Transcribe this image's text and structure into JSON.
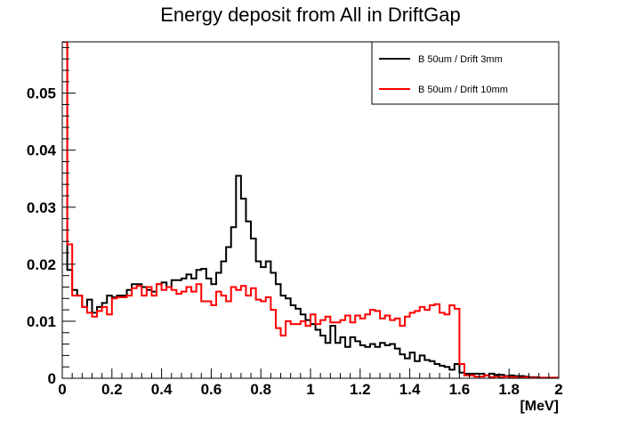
{
  "chart_data": {
    "type": "line",
    "title": "Energy deposit from All in DriftGap",
    "xlabel": "[MeV]",
    "ylabel": "",
    "xlim": [
      0,
      2
    ],
    "ylim": [
      0,
      0.059
    ],
    "x_ticks": [
      "0",
      "0.2",
      "0.4",
      "0.6",
      "0.8",
      "1",
      "1.2",
      "1.4",
      "1.6",
      "1.8",
      "2"
    ],
    "y_ticks": [
      "0",
      "0.01",
      "0.02",
      "0.03",
      "0.04",
      "0.05"
    ],
    "bin_width": 0.02,
    "grid": false,
    "legend_position": "top-right",
    "series": [
      {
        "name": "B 50um / Drift 3mm",
        "color": "#000000",
        "values": [
          0.059,
          0.019,
          0.0155,
          0.0145,
          0.0125,
          0.0138,
          0.0115,
          0.0125,
          0.0132,
          0.0145,
          0.0142,
          0.0145,
          0.0145,
          0.0155,
          0.0165,
          0.0165,
          0.016,
          0.0155,
          0.0152,
          0.0165,
          0.0168,
          0.016,
          0.0172,
          0.0172,
          0.0175,
          0.0182,
          0.0175,
          0.019,
          0.0192,
          0.0175,
          0.0165,
          0.0185,
          0.0205,
          0.023,
          0.0265,
          0.0355,
          0.0315,
          0.0275,
          0.0245,
          0.0205,
          0.0195,
          0.0205,
          0.0185,
          0.0165,
          0.0145,
          0.014,
          0.0128,
          0.0122,
          0.0112,
          0.0102,
          0.0095,
          0.0085,
          0.0075,
          0.0062,
          0.0092,
          0.0062,
          0.0072,
          0.0055,
          0.0072,
          0.0065,
          0.0058,
          0.0055,
          0.006,
          0.0055,
          0.0062,
          0.0058,
          0.006,
          0.0052,
          0.0042,
          0.0035,
          0.0045,
          0.003,
          0.004,
          0.0032,
          0.003,
          0.0025,
          0.0022,
          0.002,
          0.0015,
          0.0025,
          0.001,
          0.0008,
          0.0008,
          0.0008,
          0.0008,
          0.0005,
          0.0008,
          0.0006,
          0.0006,
          0.0004,
          0.0005,
          0.0004,
          0.0004,
          0.0003,
          0.0002,
          0.0002,
          0.0001,
          0.0001,
          0.0001,
          0.0001
        ]
      },
      {
        "name": "B 50um / Drift 10mm",
        "color": "#ff0000",
        "values": [
          0.059,
          0.0235,
          0.0145,
          0.0145,
          0.0125,
          0.0115,
          0.0108,
          0.0118,
          0.0125,
          0.0112,
          0.014,
          0.0142,
          0.0142,
          0.0145,
          0.0158,
          0.0162,
          0.0145,
          0.016,
          0.0145,
          0.0165,
          0.0155,
          0.016,
          0.0155,
          0.0148,
          0.0152,
          0.016,
          0.0152,
          0.0165,
          0.0135,
          0.0135,
          0.0128,
          0.0152,
          0.0145,
          0.0135,
          0.016,
          0.0155,
          0.0162,
          0.0145,
          0.0158,
          0.0138,
          0.0135,
          0.0142,
          0.012,
          0.0088,
          0.0075,
          0.01,
          0.0095,
          0.0095,
          0.01,
          0.0092,
          0.0112,
          0.0095,
          0.0102,
          0.0108,
          0.0098,
          0.0098,
          0.0102,
          0.011,
          0.0098,
          0.011,
          0.0105,
          0.0112,
          0.012,
          0.0118,
          0.0105,
          0.011,
          0.0102,
          0.0105,
          0.0092,
          0.0108,
          0.0115,
          0.0118,
          0.0125,
          0.012,
          0.0128,
          0.013,
          0.0115,
          0.0112,
          0.0128,
          0.0122,
          0.0025,
          0.0005,
          0.0005,
          0.0003,
          0.0003,
          0.0005,
          0.0002,
          0.0003,
          0.0002,
          0.0003,
          0.0002,
          0.0002,
          0.0001,
          0.0002,
          0.0001,
          0.0001,
          0.0001,
          0.0001,
          0.0001,
          0.0001
        ]
      }
    ]
  }
}
